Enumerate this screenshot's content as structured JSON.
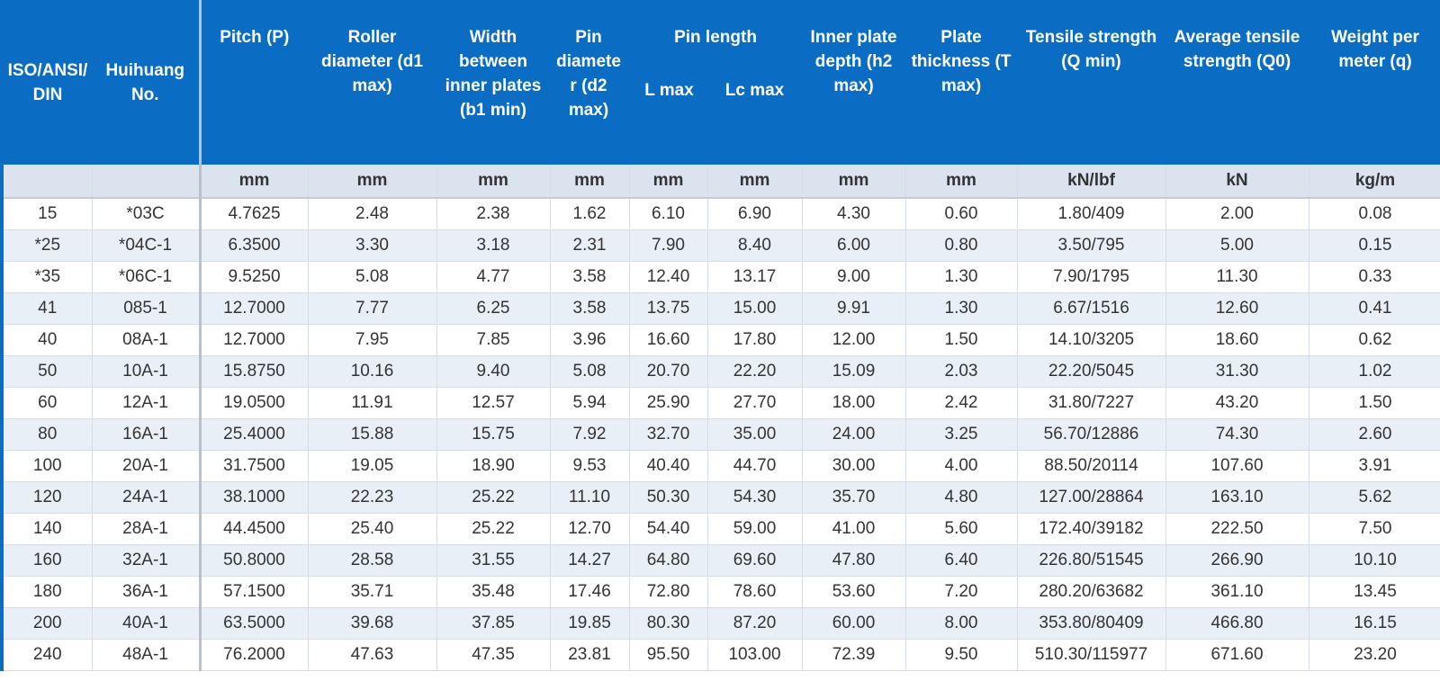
{
  "header_top": [
    "ISO/ANSI/DIN",
    "Huihuang No.",
    "Pitch (P)",
    "Roller diameter (d1 max)",
    "Width between inner plates (b1 min)",
    "Pin diameter (d2 max)",
    "Pin length",
    "Inner plate depth (h2 max)",
    "Plate thickness (T max)",
    "Tensile strength (Q min)",
    "Average tensile strength (Q0)",
    "Weight per meter (q)"
  ],
  "header_sub": [
    "L max",
    "Lc max"
  ],
  "units": [
    "",
    "",
    "mm",
    "mm",
    "mm",
    "mm",
    "mm",
    "mm",
    "mm",
    "mm",
    "kN/lbf",
    "kN",
    "kg/m"
  ],
  "rows": [
    [
      "15",
      "*03C",
      "4.7625",
      "2.48",
      "2.38",
      "1.62",
      "6.10",
      "6.90",
      "4.30",
      "0.60",
      "1.80/409",
      "2.00",
      "0.08"
    ],
    [
      "*25",
      "*04C-1",
      "6.3500",
      "3.30",
      "3.18",
      "2.31",
      "7.90",
      "8.40",
      "6.00",
      "0.80",
      "3.50/795",
      "5.00",
      "0.15"
    ],
    [
      "*35",
      "*06C-1",
      "9.5250",
      "5.08",
      "4.77",
      "3.58",
      "12.40",
      "13.17",
      "9.00",
      "1.30",
      "7.90/1795",
      "11.30",
      "0.33"
    ],
    [
      "41",
      "085-1",
      "12.7000",
      "7.77",
      "6.25",
      "3.58",
      "13.75",
      "15.00",
      "9.91",
      "1.30",
      "6.67/1516",
      "12.60",
      "0.41"
    ],
    [
      "40",
      "08A-1",
      "12.7000",
      "7.95",
      "7.85",
      "3.96",
      "16.60",
      "17.80",
      "12.00",
      "1.50",
      "14.10/3205",
      "18.60",
      "0.62"
    ],
    [
      "50",
      "10A-1",
      "15.8750",
      "10.16",
      "9.40",
      "5.08",
      "20.70",
      "22.20",
      "15.09",
      "2.03",
      "22.20/5045",
      "31.30",
      "1.02"
    ],
    [
      "60",
      "12A-1",
      "19.0500",
      "11.91",
      "12.57",
      "5.94",
      "25.90",
      "27.70",
      "18.00",
      "2.42",
      "31.80/7227",
      "43.20",
      "1.50"
    ],
    [
      "80",
      "16A-1",
      "25.4000",
      "15.88",
      "15.75",
      "7.92",
      "32.70",
      "35.00",
      "24.00",
      "3.25",
      "56.70/12886",
      "74.30",
      "2.60"
    ],
    [
      "100",
      "20A-1",
      "31.7500",
      "19.05",
      "18.90",
      "9.53",
      "40.40",
      "44.70",
      "30.00",
      "4.00",
      "88.50/20114",
      "107.60",
      "3.91"
    ],
    [
      "120",
      "24A-1",
      "38.1000",
      "22.23",
      "25.22",
      "11.10",
      "50.30",
      "54.30",
      "35.70",
      "4.80",
      "127.00/28864",
      "163.10",
      "5.62"
    ],
    [
      "140",
      "28A-1",
      "44.4500",
      "25.40",
      "25.22",
      "12.70",
      "54.40",
      "59.00",
      "41.00",
      "5.60",
      "172.40/39182",
      "222.50",
      "7.50"
    ],
    [
      "160",
      "32A-1",
      "50.8000",
      "28.58",
      "31.55",
      "14.27",
      "64.80",
      "69.60",
      "47.80",
      "6.40",
      "226.80/51545",
      "266.90",
      "10.10"
    ],
    [
      "180",
      "36A-1",
      "57.1500",
      "35.71",
      "35.48",
      "17.46",
      "72.80",
      "78.60",
      "53.60",
      "7.20",
      "280.20/63682",
      "361.10",
      "13.45"
    ],
    [
      "200",
      "40A-1",
      "63.5000",
      "39.68",
      "37.85",
      "19.85",
      "80.30",
      "87.20",
      "60.00",
      "8.00",
      "353.80/80409",
      "466.80",
      "16.15"
    ],
    [
      "240",
      "48A-1",
      "76.2000",
      "47.63",
      "47.35",
      "23.81",
      "95.50",
      "103.00",
      "72.39",
      "9.50",
      "510.30/115977",
      "671.60",
      "23.20"
    ]
  ]
}
